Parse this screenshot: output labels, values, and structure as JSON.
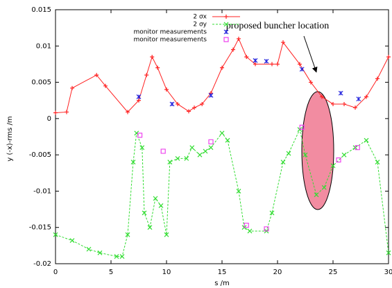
{
  "chart_data": {
    "type": "line",
    "xlabel": "s /m",
    "ylabel": "y (-x)-rms /m",
    "annotation": "proposed buncher location",
    "xlim": [
      0,
      30
    ],
    "xticks": [
      0,
      5,
      10,
      15,
      20,
      25,
      30
    ],
    "ylim": [
      -0.02,
      0.015
    ],
    "yticks": [
      0.015,
      0.01,
      0.005,
      0,
      -0.005,
      -0.01,
      -0.015,
      -0.02
    ],
    "series": [
      {
        "name": "2 σx",
        "color": "#ff2020",
        "style": "line-plus",
        "x": [
          0,
          1,
          1.5,
          3.7,
          4.5,
          6.5,
          7.5,
          8.2,
          8.7,
          9.2,
          10,
          11,
          12,
          12.5,
          13.2,
          14,
          15,
          16,
          16.5,
          17.2,
          18,
          19.5,
          20,
          20.5,
          22,
          23,
          24,
          25,
          26,
          27,
          28,
          29,
          30
        ],
        "values": [
          0.0008,
          0.0009,
          0.0042,
          0.006,
          0.0045,
          0.0009,
          0.0025,
          0.006,
          0.0085,
          0.007,
          0.004,
          0.002,
          0.001,
          0.0015,
          0.002,
          0.0035,
          0.007,
          0.0095,
          0.011,
          0.0085,
          0.0075,
          0.0075,
          0.0075,
          0.0105,
          0.0075,
          0.005,
          0.003,
          0.002,
          0.002,
          0.0015,
          0.003,
          0.0055,
          0.0085
        ]
      },
      {
        "name": "2 σy",
        "color": "#33dd33",
        "style": "dash-cross",
        "x": [
          0,
          1.5,
          3,
          4,
          5.5,
          6,
          6.5,
          7,
          7.3,
          7.8,
          8,
          8.5,
          9,
          9.5,
          10,
          10.3,
          11,
          11.8,
          12.3,
          13,
          13.5,
          14,
          15,
          15.5,
          16.5,
          17,
          17.5,
          19,
          19.5,
          20.5,
          21,
          22,
          22.5,
          23.5,
          24.2,
          25,
          26,
          27,
          28,
          29,
          30
        ],
        "values": [
          -0.016,
          -0.0168,
          -0.018,
          -0.0185,
          -0.019,
          -0.019,
          -0.016,
          -0.006,
          -0.002,
          -0.004,
          -0.013,
          -0.015,
          -0.011,
          -0.012,
          -0.016,
          -0.006,
          -0.0055,
          -0.0055,
          -0.004,
          -0.005,
          -0.0045,
          -0.004,
          -0.002,
          -0.003,
          -0.01,
          -0.015,
          -0.0155,
          -0.0155,
          -0.013,
          -0.006,
          -0.0048,
          -0.0015,
          -0.005,
          -0.0105,
          -0.0095,
          -0.0065,
          -0.005,
          -0.004,
          -0.003,
          -0.006,
          -0.0185
        ]
      },
      {
        "name": "monitor measurements",
        "color": "#2222dd",
        "style": "star",
        "x": [
          7.5,
          10.5,
          14,
          18,
          19,
          22.2,
          25.7,
          27.3
        ],
        "values": [
          0.003,
          0.002,
          0.0032,
          0.008,
          0.0079,
          0.0068,
          0.0035,
          0.0027
        ]
      },
      {
        "name": "monitor measurements",
        "color": "#ee44ee",
        "style": "square",
        "x": [
          7.6,
          9.7,
          14,
          17.2,
          19,
          22.2,
          25.5,
          27.2
        ],
        "values": [
          -0.0023,
          -0.0045,
          -0.0032,
          -0.0147,
          -0.0152,
          -0.0012,
          -0.0057,
          -0.004
        ]
      }
    ]
  }
}
